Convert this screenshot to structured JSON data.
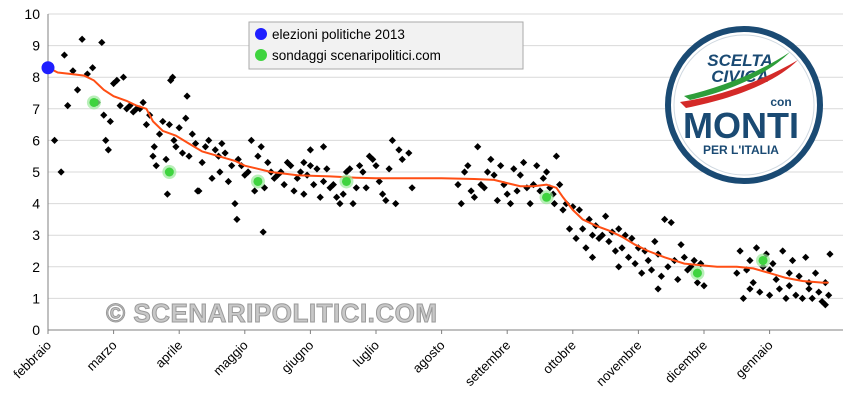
{
  "chart_data": {
    "type": "scatter",
    "y_axis": {
      "ylim": [
        0,
        10
      ],
      "ticks": [
        "0",
        "1",
        "2",
        "3",
        "4",
        "5",
        "6",
        "7",
        "8",
        "9",
        "10"
      ]
    },
    "x_axis": {
      "months": [
        "febbraio",
        "marzo",
        "aprile",
        "maggio",
        "giugno",
        "luglio",
        "agosto",
        "settembre",
        "ottobre",
        "novembre",
        "dicembre",
        "gennaio"
      ]
    },
    "grid": "horizontal",
    "legend_position": "top-center",
    "legend": [
      {
        "label": "elezioni politiche 2013",
        "color": "#1f1fff"
      },
      {
        "label": "sondaggi scenaripolitici.com",
        "color": "#3fd43f"
      }
    ],
    "elezioni_point": {
      "month": 0.0,
      "value": 8.3
    },
    "scenaripolitici_points": [
      {
        "month": 0.7,
        "value": 7.2
      },
      {
        "month": 1.85,
        "value": 5.0
      },
      {
        "month": 3.2,
        "value": 4.7
      },
      {
        "month": 4.55,
        "value": 4.7
      },
      {
        "month": 7.6,
        "value": 4.2
      },
      {
        "month": 9.9,
        "value": 1.8
      },
      {
        "month": 10.9,
        "value": 2.2
      }
    ],
    "trend_line": [
      [
        0.0,
        8.3
      ],
      [
        0.15,
        8.15
      ],
      [
        0.35,
        8.1
      ],
      [
        0.55,
        8.05
      ],
      [
        0.7,
        7.9
      ],
      [
        0.85,
        7.6
      ],
      [
        1.0,
        7.4
      ],
      [
        1.2,
        7.25
      ],
      [
        1.35,
        7.1
      ],
      [
        1.5,
        7.0
      ],
      [
        1.6,
        6.6
      ],
      [
        1.75,
        6.3
      ],
      [
        1.95,
        6.15
      ],
      [
        2.15,
        5.9
      ],
      [
        2.35,
        5.65
      ],
      [
        2.6,
        5.5
      ],
      [
        2.85,
        5.35
      ],
      [
        3.0,
        5.2
      ],
      [
        3.2,
        5.1
      ],
      [
        3.4,
        5.0
      ],
      [
        3.6,
        4.95
      ],
      [
        3.8,
        4.9
      ],
      [
        4.0,
        4.88
      ],
      [
        4.3,
        4.86
      ],
      [
        4.7,
        4.82
      ],
      [
        5.0,
        4.8
      ],
      [
        5.5,
        4.8
      ],
      [
        6.0,
        4.8
      ],
      [
        6.5,
        4.78
      ],
      [
        6.8,
        4.75
      ],
      [
        7.0,
        4.65
      ],
      [
        7.2,
        4.55
      ],
      [
        7.4,
        4.55
      ],
      [
        7.6,
        4.6
      ],
      [
        7.75,
        4.5
      ],
      [
        7.85,
        4.2
      ],
      [
        8.0,
        3.8
      ],
      [
        8.15,
        3.5
      ],
      [
        8.35,
        3.3
      ],
      [
        8.55,
        3.15
      ],
      [
        8.75,
        2.95
      ],
      [
        8.95,
        2.7
      ],
      [
        9.15,
        2.5
      ],
      [
        9.4,
        2.3
      ],
      [
        9.7,
        2.1
      ],
      [
        9.95,
        2.05
      ],
      [
        10.2,
        2.0
      ],
      [
        10.5,
        2.0
      ],
      [
        10.75,
        1.95
      ],
      [
        11.0,
        1.8
      ],
      [
        11.25,
        1.65
      ],
      [
        11.5,
        1.55
      ],
      [
        11.8,
        1.5
      ],
      [
        11.9,
        1.5
      ]
    ],
    "polls": [
      [
        0.1,
        6.0
      ],
      [
        0.2,
        5.0
      ],
      [
        0.25,
        8.7
      ],
      [
        0.3,
        7.1
      ],
      [
        0.38,
        8.2
      ],
      [
        0.45,
        7.6
      ],
      [
        0.52,
        9.2
      ],
      [
        0.6,
        8.1
      ],
      [
        0.68,
        8.3
      ],
      [
        0.75,
        7.2
      ],
      [
        0.82,
        9.1
      ],
      [
        0.85,
        6.8
      ],
      [
        0.88,
        6.0
      ],
      [
        0.92,
        5.7
      ],
      [
        0.95,
        6.6
      ],
      [
        1.0,
        7.8
      ],
      [
        1.05,
        7.9
      ],
      [
        1.1,
        7.1
      ],
      [
        1.15,
        8.0
      ],
      [
        1.2,
        7.0
      ],
      [
        1.25,
        7.1
      ],
      [
        1.3,
        6.9
      ],
      [
        1.35,
        7.0
      ],
      [
        1.4,
        7.0
      ],
      [
        1.45,
        7.2
      ],
      [
        1.5,
        6.5
      ],
      [
        1.55,
        6.8
      ],
      [
        1.6,
        5.5
      ],
      [
        1.62,
        5.8
      ],
      [
        1.65,
        5.2
      ],
      [
        1.7,
        6.2
      ],
      [
        1.75,
        6.6
      ],
      [
        1.8,
        5.4
      ],
      [
        1.82,
        4.3
      ],
      [
        1.85,
        6.5
      ],
      [
        1.87,
        7.9
      ],
      [
        1.9,
        8.0
      ],
      [
        1.92,
        6.0
      ],
      [
        1.95,
        5.8
      ],
      [
        2.0,
        6.4
      ],
      [
        2.05,
        5.6
      ],
      [
        2.1,
        6.7
      ],
      [
        2.12,
        7.4
      ],
      [
        2.15,
        5.5
      ],
      [
        2.2,
        6.2
      ],
      [
        2.25,
        5.9
      ],
      [
        2.28,
        4.4
      ],
      [
        2.3,
        4.4
      ],
      [
        2.35,
        5.3
      ],
      [
        2.4,
        5.8
      ],
      [
        2.45,
        6.0
      ],
      [
        2.5,
        4.8
      ],
      [
        2.55,
        5.7
      ],
      [
        2.6,
        5.5
      ],
      [
        2.62,
        5.0
      ],
      [
        2.65,
        5.9
      ],
      [
        2.7,
        5.6
      ],
      [
        2.75,
        4.7
      ],
      [
        2.8,
        5.2
      ],
      [
        2.85,
        4.0
      ],
      [
        2.88,
        3.5
      ],
      [
        2.9,
        5.4
      ],
      [
        2.95,
        5.2
      ],
      [
        3.0,
        4.9
      ],
      [
        3.05,
        5.0
      ],
      [
        3.1,
        6.0
      ],
      [
        3.15,
        4.4
      ],
      [
        3.2,
        5.5
      ],
      [
        3.25,
        5.8
      ],
      [
        3.28,
        3.1
      ],
      [
        3.3,
        4.5
      ],
      [
        3.35,
        5.3
      ],
      [
        3.4,
        5.0
      ],
      [
        3.45,
        4.8
      ],
      [
        3.5,
        4.9
      ],
      [
        3.55,
        5.0
      ],
      [
        3.6,
        4.6
      ],
      [
        3.65,
        5.3
      ],
      [
        3.7,
        5.2
      ],
      [
        3.75,
        4.4
      ],
      [
        3.8,
        4.8
      ],
      [
        3.85,
        5.0
      ],
      [
        3.9,
        4.3
      ],
      [
        3.95,
        4.9
      ],
      [
        4.0,
        5.7
      ],
      [
        4.05,
        4.6
      ],
      [
        4.1,
        5.1
      ],
      [
        4.15,
        4.2
      ],
      [
        4.2,
        5.8
      ],
      [
        4.25,
        5.1
      ],
      [
        4.3,
        4.5
      ],
      [
        4.35,
        4.6
      ],
      [
        4.4,
        4.2
      ],
      [
        4.45,
        4.0
      ],
      [
        4.5,
        4.3
      ],
      [
        4.55,
        5.0
      ],
      [
        4.6,
        5.1
      ],
      [
        4.65,
        4.0
      ],
      [
        4.7,
        4.5
      ],
      [
        4.75,
        5.2
      ],
      [
        4.8,
        5.0
      ],
      [
        4.85,
        4.5
      ],
      [
        4.9,
        5.5
      ],
      [
        4.95,
        5.4
      ],
      [
        5.0,
        5.2
      ],
      [
        5.05,
        4.7
      ],
      [
        5.1,
        4.3
      ],
      [
        5.15,
        4.1
      ],
      [
        5.2,
        5.1
      ],
      [
        5.25,
        6.0
      ],
      [
        5.3,
        4.0
      ],
      [
        5.35,
        5.7
      ],
      [
        5.4,
        5.4
      ],
      [
        5.5,
        5.6
      ],
      [
        5.55,
        4.5
      ],
      [
        4.0,
        5.2
      ],
      [
        4.2,
        4.7
      ],
      [
        3.9,
        5.3
      ],
      [
        6.25,
        4.6
      ],
      [
        6.3,
        4.0
      ],
      [
        6.35,
        5.0
      ],
      [
        6.4,
        5.2
      ],
      [
        6.45,
        4.4
      ],
      [
        6.5,
        4.2
      ],
      [
        6.55,
        5.8
      ],
      [
        6.6,
        4.6
      ],
      [
        6.65,
        4.5
      ],
      [
        6.7,
        5.0
      ],
      [
        6.75,
        5.4
      ],
      [
        6.8,
        4.9
      ],
      [
        6.85,
        4.1
      ],
      [
        6.9,
        5.2
      ],
      [
        6.95,
        4.6
      ],
      [
        7.0,
        4.3
      ],
      [
        7.05,
        4.0
      ],
      [
        7.1,
        5.1
      ],
      [
        7.15,
        4.4
      ],
      [
        7.2,
        4.9
      ],
      [
        7.25,
        5.3
      ],
      [
        7.3,
        4.5
      ],
      [
        7.35,
        4.0
      ],
      [
        7.4,
        4.6
      ],
      [
        7.45,
        5.2
      ],
      [
        7.5,
        4.4
      ],
      [
        7.55,
        4.8
      ],
      [
        7.6,
        5.0
      ],
      [
        7.65,
        4.5
      ],
      [
        7.7,
        4.3
      ],
      [
        7.72,
        4.0
      ],
      [
        7.75,
        5.5
      ],
      [
        7.8,
        4.6
      ],
      [
        7.85,
        3.8
      ],
      [
        7.9,
        4.0
      ],
      [
        7.95,
        3.2
      ],
      [
        8.0,
        3.9
      ],
      [
        8.05,
        2.9
      ],
      [
        8.1,
        3.8
      ],
      [
        8.15,
        3.2
      ],
      [
        8.2,
        2.6
      ],
      [
        8.25,
        3.5
      ],
      [
        8.3,
        3.0
      ],
      [
        8.35,
        3.3
      ],
      [
        8.4,
        2.9
      ],
      [
        8.45,
        3.0
      ],
      [
        8.5,
        3.6
      ],
      [
        8.55,
        2.8
      ],
      [
        8.6,
        3.1
      ],
      [
        8.65,
        2.5
      ],
      [
        8.7,
        3.2
      ],
      [
        8.75,
        2.6
      ],
      [
        8.8,
        3.0
      ],
      [
        8.85,
        2.3
      ],
      [
        8.9,
        2.9
      ],
      [
        8.95,
        2.1
      ],
      [
        9.0,
        2.6
      ],
      [
        9.05,
        1.8
      ],
      [
        9.1,
        2.5
      ],
      [
        9.15,
        2.2
      ],
      [
        9.2,
        1.9
      ],
      [
        9.25,
        2.8
      ],
      [
        9.3,
        2.4
      ],
      [
        9.35,
        1.7
      ],
      [
        9.4,
        3.5
      ],
      [
        9.45,
        2.0
      ],
      [
        9.5,
        3.4
      ],
      [
        9.55,
        2.2
      ],
      [
        9.6,
        1.6
      ],
      [
        9.65,
        2.7
      ],
      [
        9.7,
        2.3
      ],
      [
        9.75,
        1.9
      ],
      [
        9.8,
        2.0
      ],
      [
        9.85,
        2.2
      ],
      [
        9.9,
        1.5
      ],
      [
        9.95,
        2.1
      ],
      [
        10.0,
        1.4
      ],
      [
        8.3,
        2.3
      ],
      [
        8.7,
        2.0
      ],
      [
        9.3,
        1.3
      ],
      [
        10.5,
        1.8
      ],
      [
        10.55,
        2.5
      ],
      [
        10.6,
        1.0
      ],
      [
        10.65,
        1.9
      ],
      [
        10.7,
        2.2
      ],
      [
        10.75,
        1.5
      ],
      [
        10.8,
        2.6
      ],
      [
        10.85,
        1.2
      ],
      [
        10.9,
        2.0
      ],
      [
        10.95,
        2.4
      ],
      [
        11.0,
        1.1
      ],
      [
        11.05,
        2.1
      ],
      [
        11.1,
        1.6
      ],
      [
        11.15,
        1.3
      ],
      [
        11.2,
        2.5
      ],
      [
        11.25,
        1.0
      ],
      [
        11.3,
        1.8
      ],
      [
        11.35,
        2.2
      ],
      [
        11.4,
        1.1
      ],
      [
        11.45,
        1.7
      ],
      [
        11.5,
        1.0
      ],
      [
        11.55,
        2.3
      ],
      [
        11.6,
        1.5
      ],
      [
        11.65,
        1.0
      ],
      [
        11.7,
        1.8
      ],
      [
        11.75,
        1.2
      ],
      [
        11.8,
        0.9
      ],
      [
        11.85,
        1.5
      ],
      [
        11.9,
        1.1
      ],
      [
        11.92,
        2.4
      ],
      [
        10.7,
        1.3
      ],
      [
        11.0,
        1.9
      ],
      [
        11.3,
        1.4
      ],
      [
        11.6,
        1.3
      ],
      [
        11.85,
        0.8
      ]
    ]
  },
  "watermark": {
    "text": "© SCENARIPOLITICI.COM"
  },
  "logo": {
    "line1": "SCELTA",
    "line2": "CIVICA",
    "line3": "con",
    "line4": "MONTI",
    "line5": "PER L'ITALIA",
    "blue": "#1a4a73",
    "red": "#d42a28",
    "green": "#2e9e3a"
  }
}
